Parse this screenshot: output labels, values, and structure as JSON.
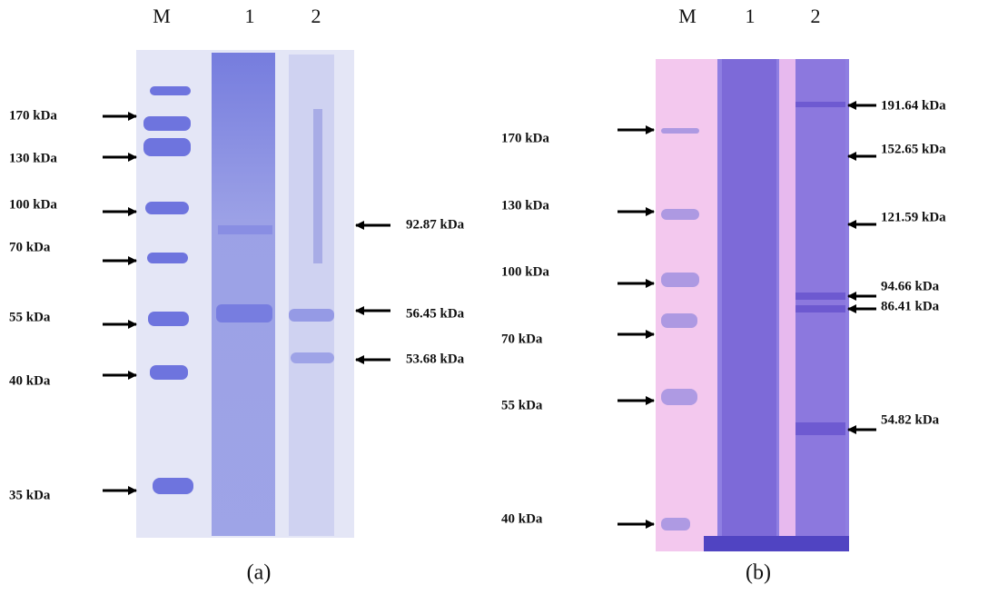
{
  "panels": [
    {
      "caption": "(a)",
      "lanes": [
        "M",
        "1",
        "2"
      ],
      "markers": [
        "170 kDa",
        "130 kDa",
        "100 kDa",
        "70 kDa",
        "55 kDa",
        "40 kDa",
        "35 kDa"
      ],
      "bands": [
        "92.87 kDa",
        "56.45 kDa",
        "53.68 kDa"
      ]
    },
    {
      "caption": "(b)",
      "lanes": [
        "M",
        "1",
        "2"
      ],
      "markers": [
        "170 kDa",
        "130 kDa",
        "100 kDa",
        "70 kDa",
        "55 kDa",
        "40 kDa"
      ],
      "bands": [
        "191.64 kDa",
        "152.65 kDa",
        "121.59 kDa",
        "94.66 kDa",
        "86.41 kDa",
        "54.82 kDa"
      ]
    }
  ]
}
